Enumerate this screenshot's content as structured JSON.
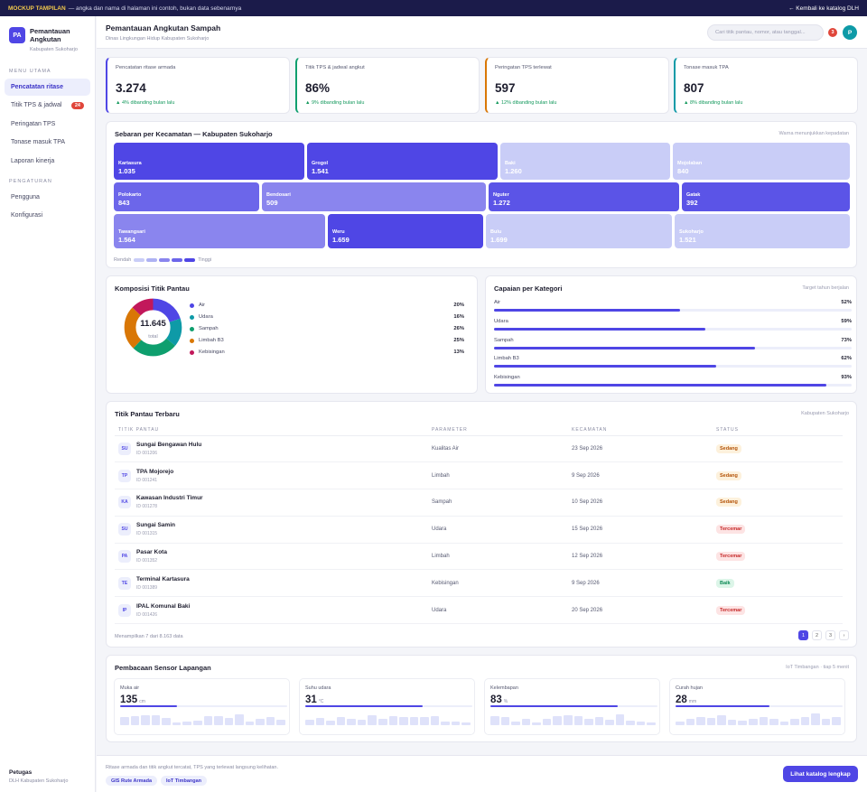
{
  "banner": {
    "tag": "MOCKUP TAMPILAN",
    "text": "— angka dan nama di halaman ini contoh, bukan data sebenarnya",
    "back_label": "← Kembali ke katalog DLH"
  },
  "brand": {
    "initials": "PA",
    "title": "Pemantauan Angkutan",
    "subtitle": "Kabupaten Sukoharjo"
  },
  "sidebar": {
    "main_label": "MENU UTAMA",
    "main_items": [
      {
        "label": "Pencatatan ritase",
        "badge": ""
      },
      {
        "label": "Titik TPS & jadwal",
        "badge": "24"
      },
      {
        "label": "Peringatan TPS",
        "badge": ""
      },
      {
        "label": "Tonase masuk TPA",
        "badge": ""
      },
      {
        "label": "Laporan kinerja",
        "badge": ""
      }
    ],
    "settings_label": "PENGATURAN",
    "settings_items": [
      {
        "label": "Pengguna"
      },
      {
        "label": "Konfigurasi"
      }
    ],
    "user_role": "Petugas",
    "user_unit": "DLH Kabupaten Sukoharjo"
  },
  "header": {
    "title": "Pemantauan Angkutan Sampah",
    "subtitle": "Dinas Lingkungan Hidup Kabupaten Sukoharjo",
    "search_placeholder": "Cari titik pantau, nomor, atau tanggal...",
    "notif_count": "3",
    "avatar_initial": "P"
  },
  "kpis": [
    {
      "label": "Pencatatan ritase armada",
      "value": "3.274",
      "delta": "▲ 4% dibanding bulan lalu",
      "accent": "#4f46e5"
    },
    {
      "label": "Titik TPS & jadwal angkut",
      "value": "86%",
      "delta": "▲ 9% dibanding bulan lalu",
      "accent": "#0e9f6e"
    },
    {
      "label": "Peringatan TPS terlewat",
      "value": "597",
      "delta": "▲ 12% dibanding bulan lalu",
      "accent": "#d97706"
    },
    {
      "label": "Tonase masuk TPA",
      "value": "807",
      "delta": "▲ 8% dibanding bulan lalu",
      "accent": "#0e9aa7"
    }
  ],
  "treemap": {
    "title": "Sebaran per Kecamatan — Kabupaten Sukoharjo",
    "note": "Warna menunjukkan kepadatan",
    "tiles": [
      {
        "name": "Kartasura",
        "value": "1.035",
        "color": "#4f46e5"
      },
      {
        "name": "Grogol",
        "value": "1.541",
        "color": "#4f46e5"
      },
      {
        "name": "Baki",
        "value": "1.260",
        "color": "#c9cdf7"
      },
      {
        "name": "Mojolaban",
        "value": "840",
        "color": "#c9cdf7"
      },
      {
        "name": "Polokarto",
        "value": "843",
        "color": "#6c66ea"
      },
      {
        "name": "Bendosari",
        "value": "509",
        "color": "#8a85ee"
      },
      {
        "name": "Nguter",
        "value": "1.272",
        "color": "#5b54e7"
      },
      {
        "name": "Gatak",
        "value": "392",
        "color": "#5b54e7"
      },
      {
        "name": "Tawangsari",
        "value": "1.564",
        "color": "#8a85ee"
      },
      {
        "name": "Weru",
        "value": "1.659",
        "color": "#4f46e5"
      },
      {
        "name": "Bulu",
        "value": "1.699",
        "color": "#c9cdf7"
      },
      {
        "name": "Sukoharjo",
        "value": "1.521",
        "color": "#c9cdf7"
      }
    ],
    "legend_low": "Rendah",
    "legend_high": "Tinggi",
    "legend_colors": [
      "#c9cdf7",
      "#aeb2f3",
      "#8a85ee",
      "#6c66ea",
      "#4f46e5"
    ]
  },
  "composition": {
    "title": "Komposisi Titik Pantau",
    "total": "11.645",
    "total_label": "total",
    "items": [
      {
        "label": "Air",
        "pct": "20%",
        "value": 20,
        "color": "#4f46e5"
      },
      {
        "label": "Udara",
        "pct": "16%",
        "value": 16,
        "color": "#0e9aa7"
      },
      {
        "label": "Sampah",
        "pct": "26%",
        "value": 26,
        "color": "#0e9f6e"
      },
      {
        "label": "Limbah B3",
        "pct": "25%",
        "value": 25,
        "color": "#d97706"
      },
      {
        "label": "Kebisingan",
        "pct": "13%",
        "value": 13,
        "color": "#c2185b"
      }
    ]
  },
  "achievement": {
    "title": "Capaian per Kategori",
    "note": "Target tahun berjalan",
    "items": [
      {
        "label": "Air",
        "pct": "52%",
        "value": 0.52
      },
      {
        "label": "Udara",
        "pct": "59%",
        "value": 0.59
      },
      {
        "label": "Sampah",
        "pct": "73%",
        "value": 0.73
      },
      {
        "label": "Limbah B3",
        "pct": "62%",
        "value": 0.62
      },
      {
        "label": "Kebisingan",
        "pct": "93%",
        "value": 0.93
      }
    ]
  },
  "table": {
    "title": "Titik Pantau Terbaru",
    "note": "Kabupaten Sukoharjo",
    "headers": [
      "TITIK PANTAU",
      "PARAMETER",
      "KECAMATAN",
      "STATUS"
    ],
    "rows": [
      {
        "initials": "SU",
        "name": "Sungai Bengawan Hulu",
        "id": "ID 001206",
        "param": "Kualitas Air",
        "date": "23 Sep 2026",
        "status": "Sedang"
      },
      {
        "initials": "TP",
        "name": "TPA Mojorejo",
        "id": "ID 001241",
        "param": "Limbah",
        "date": "9 Sep 2026",
        "status": "Sedang"
      },
      {
        "initials": "KA",
        "name": "Kawasan Industri Timur",
        "id": "ID 001278",
        "param": "Sampah",
        "date": "10 Sep 2026",
        "status": "Sedang"
      },
      {
        "initials": "SU",
        "name": "Sungai Samin",
        "id": "ID 001315",
        "param": "Udara",
        "date": "15 Sep 2026",
        "status": "Tercemar"
      },
      {
        "initials": "PA",
        "name": "Pasar Kota",
        "id": "ID 001352",
        "param": "Limbah",
        "date": "12 Sep 2026",
        "status": "Tercemar"
      },
      {
        "initials": "TE",
        "name": "Terminal Kartasura",
        "id": "ID 001389",
        "param": "Kebisingan",
        "date": "9 Sep 2026",
        "status": "Baik"
      },
      {
        "initials": "IP",
        "name": "IPAL Komunal Baki",
        "id": "ID 001426",
        "param": "Udara",
        "date": "20 Sep 2026",
        "status": "Tercemar"
      }
    ],
    "status_styles": {
      "Sedang": {
        "bg": "#fdf1dc",
        "fg": "#b45309"
      },
      "Tercemar": {
        "bg": "#fde4e4",
        "fg": "#c62828"
      },
      "Baik": {
        "bg": "#dcf5e8",
        "fg": "#0e8a55"
      }
    },
    "footer": "Menampilkan 7 dari 8.163 data",
    "pages": [
      "1",
      "2",
      "3",
      "›"
    ]
  },
  "sensors": {
    "title": "Pembacaan Sensor Lapangan",
    "note": "IoT Timbangan · tiap 5 menit",
    "items": [
      {
        "label": "Muka air",
        "value": "135",
        "unit": "cm",
        "level": 0.34,
        "spark": [
          0.6,
          0.65,
          0.75,
          0.72,
          0.55,
          0.2,
          0.25,
          0.35,
          0.7,
          0.68,
          0.55,
          0.78,
          0.3,
          0.5,
          0.58,
          0.4
        ]
      },
      {
        "label": "Suhu udara",
        "value": "31",
        "unit": "°C",
        "level": 0.7,
        "spark": [
          0.4,
          0.55,
          0.35,
          0.6,
          0.5,
          0.4,
          0.72,
          0.5,
          0.68,
          0.6,
          0.58,
          0.62,
          0.65,
          0.3,
          0.25,
          0.2
        ]
      },
      {
        "label": "Kelembapan",
        "value": "83",
        "unit": "%",
        "level": 0.76,
        "spark": [
          0.7,
          0.6,
          0.3,
          0.5,
          0.2,
          0.5,
          0.65,
          0.75,
          0.7,
          0.5,
          0.6,
          0.4,
          0.8,
          0.35,
          0.3,
          0.2
        ]
      },
      {
        "label": "Curah hujan",
        "value": "28",
        "unit": "mm",
        "level": 0.56,
        "spark": [
          0.3,
          0.5,
          0.6,
          0.55,
          0.75,
          0.4,
          0.35,
          0.45,
          0.6,
          0.5,
          0.3,
          0.45,
          0.6,
          0.85,
          0.45,
          0.6
        ]
      }
    ]
  },
  "footer": {
    "text": "Ritase armada dan titik angkut tercatat, TPS yang terlewat langsung kelihatan.",
    "chips": [
      "GIS Rute Armada",
      "IoT Timbangan"
    ],
    "cta": "Lihat katalog lengkap"
  }
}
